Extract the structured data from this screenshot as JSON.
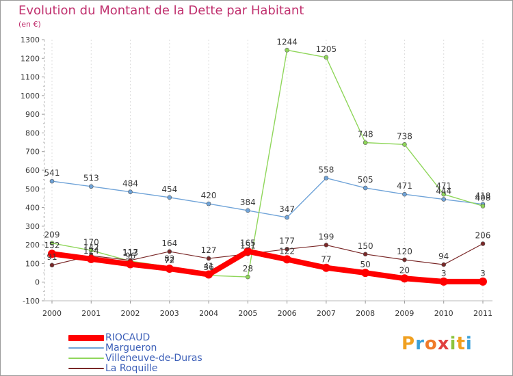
{
  "header": {
    "title": "Evolution du Montant de la Dette par Habitant",
    "unit": "(en €)"
  },
  "logo": {
    "letters": [
      "P",
      "r",
      "o",
      "x",
      "i",
      "t",
      "i"
    ],
    "colors": [
      "#f0a020",
      "#3aa0d8",
      "#f07a2a",
      "#e04040",
      "#8cc43c",
      "#f0a020",
      "#3aa0d8"
    ]
  },
  "chart_data": {
    "type": "line",
    "title": "Evolution du Montant de la Dette par Habitant",
    "ylabel": "(en €)",
    "xlabel": "",
    "ylim": [
      -100,
      1300
    ],
    "yticks": [
      -100,
      0,
      100,
      200,
      300,
      400,
      500,
      600,
      700,
      800,
      900,
      1000,
      1100,
      1200,
      1300
    ],
    "categories": [
      "2000",
      "2001",
      "2002",
      "2003",
      "2004",
      "2005",
      "2006",
      "2007",
      "2008",
      "2009",
      "2010",
      "2011"
    ],
    "series": [
      {
        "name": "RIOCAUD",
        "color": "#ff0000",
        "width": 8,
        "marker": 6,
        "values": [
          152,
          124,
          96,
          72,
          41,
          165,
          122,
          77,
          50,
          20,
          3,
          3
        ]
      },
      {
        "name": "Margueron",
        "color": "#6fa3d8",
        "width": 1.4,
        "marker": 3,
        "values": [
          541,
          513,
          484,
          454,
          420,
          384,
          347,
          558,
          505,
          471,
          444,
          418
        ]
      },
      {
        "name": "Villeneuve-de-Duras",
        "color": "#8fd65a",
        "width": 1.4,
        "marker": 3,
        "values": [
          209,
          170,
          113,
          82,
          36,
          28,
          1244,
          1205,
          748,
          738,
          471,
          408
        ]
      },
      {
        "name": "La Roquille",
        "color": "#7a2828",
        "width": 1.2,
        "marker": 3,
        "values": [
          91,
          142,
          117,
          164,
          127,
          151,
          177,
          199,
          150,
          120,
          94,
          206
        ]
      }
    ],
    "legend_position": "bottom-left",
    "grid": "vertical"
  }
}
